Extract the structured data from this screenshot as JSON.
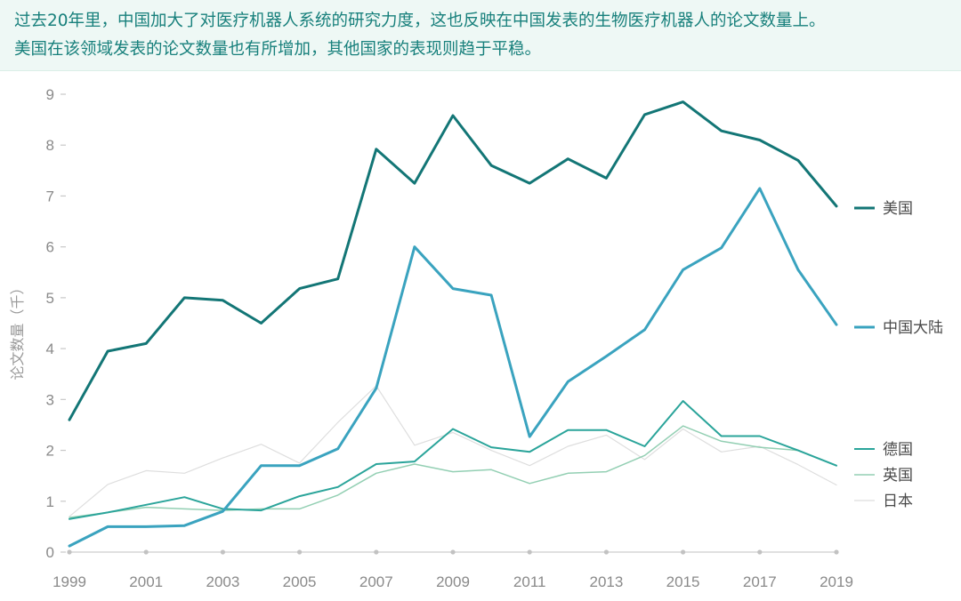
{
  "header": {
    "line1": "过去20年里，中国加大了对医疗机器人系统的研究力度，这也反映在中国发表的生物医疗机器人的论文数量上。",
    "line2": "美国在该领域发表的论文数量也有所增加，其他国家的表现则趋于平稳。"
  },
  "chart_data": {
    "type": "line",
    "title": "",
    "ylabel": "论文数量（千）",
    "xlabel": "",
    "ylim": [
      0,
      9
    ],
    "yticks": [
      0,
      1,
      2,
      3,
      4,
      5,
      6,
      7,
      8,
      9
    ],
    "x": [
      1999,
      2000,
      2001,
      2002,
      2003,
      2004,
      2005,
      2006,
      2007,
      2008,
      2009,
      2010,
      2011,
      2012,
      2013,
      2014,
      2015,
      2016,
      2017,
      2018,
      2019
    ],
    "xtick_labels": [
      "1999",
      "2001",
      "2003",
      "2005",
      "2007",
      "2009",
      "2011",
      "2013",
      "2015",
      "2017",
      "2019"
    ],
    "legend_position": "right",
    "series": [
      {
        "name": "美国",
        "color": "#137676",
        "width": 3,
        "values": [
          2.6,
          3.95,
          4.1,
          5.0,
          4.95,
          4.5,
          5.18,
          5.37,
          7.92,
          7.25,
          8.58,
          7.6,
          7.25,
          7.73,
          7.35,
          8.6,
          8.85,
          8.28,
          8.1,
          7.7,
          6.8
        ]
      },
      {
        "name": "中国大陆",
        "color": "#3aa3bf",
        "width": 3,
        "values": [
          0.12,
          0.5,
          0.5,
          0.52,
          0.8,
          1.7,
          1.7,
          2.03,
          3.22,
          6.0,
          5.18,
          5.05,
          2.27,
          3.35,
          3.85,
          4.37,
          5.55,
          5.98,
          7.15,
          5.55,
          4.47
        ]
      },
      {
        "name": "德国",
        "color": "#2aa49a",
        "width": 2,
        "values": [
          0.65,
          0.78,
          0.93,
          1.08,
          0.85,
          0.82,
          1.1,
          1.28,
          1.73,
          1.78,
          2.42,
          2.06,
          1.97,
          2.4,
          2.4,
          2.08,
          2.97,
          2.28,
          2.28,
          2.0,
          1.7
        ]
      },
      {
        "name": "英国",
        "color": "#93cfb3",
        "width": 1.5,
        "values": [
          0.68,
          0.78,
          0.88,
          0.85,
          0.82,
          0.85,
          0.85,
          1.12,
          1.55,
          1.73,
          1.58,
          1.62,
          1.35,
          1.55,
          1.58,
          1.9,
          2.48,
          2.18,
          2.06,
          2.0,
          1.7
        ]
      },
      {
        "name": "日本",
        "color": "#dedede",
        "width": 1.2,
        "values": [
          0.7,
          1.33,
          1.6,
          1.55,
          1.85,
          2.12,
          1.75,
          2.55,
          3.27,
          2.1,
          2.35,
          2.0,
          1.7,
          2.08,
          2.3,
          1.82,
          2.42,
          1.97,
          2.08,
          1.72,
          1.32
        ]
      }
    ]
  }
}
